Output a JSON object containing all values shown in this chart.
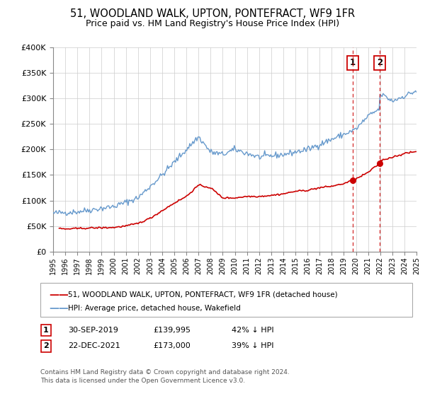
{
  "title": "51, WOODLAND WALK, UPTON, PONTEFRACT, WF9 1FR",
  "subtitle": "Price paid vs. HM Land Registry's House Price Index (HPI)",
  "legend_label_red": "51, WOODLAND WALK, UPTON, PONTEFRACT, WF9 1FR (detached house)",
  "legend_label_blue": "HPI: Average price, detached house, Wakefield",
  "annotation1_date": "30-SEP-2019",
  "annotation1_price": "£139,995",
  "annotation1_hpi": "42% ↓ HPI",
  "annotation2_date": "22-DEC-2021",
  "annotation2_price": "£173,000",
  "annotation2_hpi": "39% ↓ HPI",
  "footnote_line1": "Contains HM Land Registry data © Crown copyright and database right 2024.",
  "footnote_line2": "This data is licensed under the Open Government Licence v3.0.",
  "vline1_year": 2019.75,
  "vline2_year": 2021.97,
  "marker1_red_x": 2019.75,
  "marker1_red_y": 139995,
  "marker2_red_x": 2021.97,
  "marker2_red_y": 173000,
  "ylim": [
    0,
    400000
  ],
  "xlim_start": 1995,
  "xlim_end": 2025,
  "red_color": "#cc0000",
  "blue_color": "#6699cc",
  "vline_color": "#cc0000",
  "background_color": "#ffffff",
  "grid_color": "#cccccc",
  "box_color": "#cc0000",
  "title_fontsize": 10.5,
  "subtitle_fontsize": 9,
  "ytick_labels": [
    "£0",
    "£50K",
    "£100K",
    "£150K",
    "£200K",
    "£250K",
    "£300K",
    "£350K",
    "£400K"
  ],
  "ytick_values": [
    0,
    50000,
    100000,
    150000,
    200000,
    250000,
    300000,
    350000,
    400000
  ]
}
